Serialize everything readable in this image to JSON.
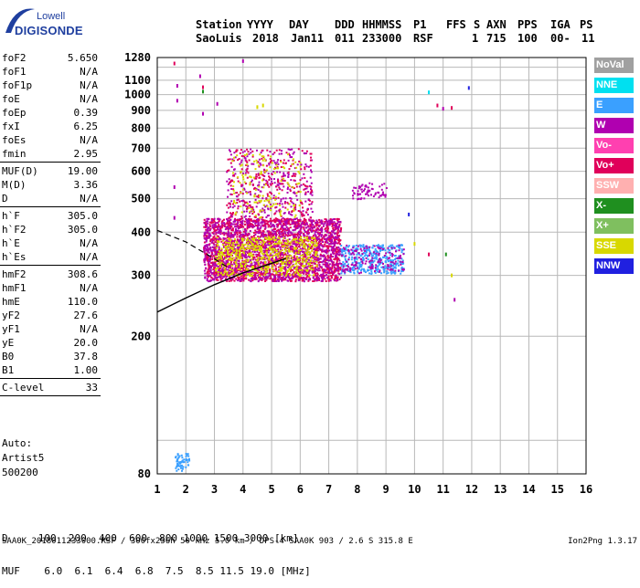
{
  "logo": {
    "top": "Lowell",
    "main": "DIGISONDE"
  },
  "header": {
    "line1": [
      "Station",
      "YYYY",
      "DAY",
      "DDD",
      "HHMMSS",
      "P1",
      "FFS",
      "S",
      "AXN",
      "PPS",
      "IGA",
      "PS"
    ],
    "line2": [
      "SaoLuis",
      "2018",
      "Jan11",
      "011",
      "233000",
      "RSF",
      "1",
      "715",
      "100",
      "00-",
      "11"
    ]
  },
  "params": [
    {
      "label": "foF2",
      "value": "5.650",
      "sep_after": false
    },
    {
      "label": "foF1",
      "value": "N/A",
      "sep_after": false
    },
    {
      "label": "foF1p",
      "value": "N/A",
      "sep_after": false
    },
    {
      "label": "foE",
      "value": "N/A",
      "sep_after": false
    },
    {
      "label": "foEp",
      "value": "0.39",
      "sep_after": false
    },
    {
      "label": "fxI",
      "value": "6.25",
      "sep_after": false
    },
    {
      "label": "foEs",
      "value": "N/A",
      "sep_after": false
    },
    {
      "label": "fmin",
      "value": "2.95",
      "sep_after": true
    },
    {
      "label": "MUF(D)",
      "value": "19.00",
      "sep_after": false
    },
    {
      "label": "M(D)",
      "value": "3.36",
      "sep_after": false
    },
    {
      "label": "D",
      "value": "N/A",
      "sep_after": true
    },
    {
      "label": "h`F",
      "value": "305.0",
      "sep_after": false
    },
    {
      "label": "h`F2",
      "value": "305.0",
      "sep_after": false
    },
    {
      "label": "h`E",
      "value": "N/A",
      "sep_after": false
    },
    {
      "label": "h`Es",
      "value": "N/A",
      "sep_after": true
    },
    {
      "label": "hmF2",
      "value": "308.6",
      "sep_after": false
    },
    {
      "label": "hmF1",
      "value": "N/A",
      "sep_after": false
    },
    {
      "label": "hmE",
      "value": "110.0",
      "sep_after": false
    },
    {
      "label": "yF2",
      "value": "27.6",
      "sep_after": false
    },
    {
      "label": "yF1",
      "value": "N/A",
      "sep_after": false
    },
    {
      "label": "yE",
      "value": "20.0",
      "sep_after": false
    },
    {
      "label": "B0",
      "value": "37.8",
      "sep_after": false
    },
    {
      "label": "B1",
      "value": "1.00",
      "sep_after": true
    },
    {
      "label": "C-level",
      "value": "33",
      "sep_after": true
    }
  ],
  "auto": {
    "line1": "Auto:",
    "line2": "Artist5",
    "line3": "500200"
  },
  "legend": [
    {
      "label": "NoVal",
      "color": "#a0a0a0"
    },
    {
      "label": "NNE",
      "color": "#00e0f0"
    },
    {
      "label": "E",
      "color": "#3aa0ff"
    },
    {
      "label": "W",
      "color": "#b000b0"
    },
    {
      "label": "Vo-",
      "color": "#ff40b0"
    },
    {
      "label": "Vo+",
      "color": "#e0005a"
    },
    {
      "label": "SSW",
      "color": "#ffb0b0"
    },
    {
      "label": "X-",
      "color": "#1f8f1f"
    },
    {
      "label": "X+",
      "color": "#7fbf5f"
    },
    {
      "label": "SSE",
      "color": "#d8d800"
    },
    {
      "label": "NNW",
      "color": "#2020e0"
    }
  ],
  "footer": {
    "line1": "D     100  200  400  600  800 1000 1500 3000 [km]",
    "line2": "MUF    6.0  6.1  6.4  6.8  7.5  8.5 11.5 19.0 [MHz]",
    "bottom": "SAA0K_2018011233000.RSF / 300fx256h 50 kHz 5.0 km / DPS-4 SAA0K 903 / 2.6 S 315.8 E",
    "version": "Ion2Png 1.3.17"
  },
  "chart_data": {
    "type": "scatter",
    "title": "",
    "xlabel": "",
    "ylabel": "",
    "xlim": [
      1,
      16
    ],
    "ylim": [
      80,
      1280
    ],
    "x_ticks": [
      1,
      2,
      3,
      4,
      5,
      6,
      7,
      8,
      9,
      10,
      11,
      12,
      13,
      14,
      15,
      16
    ],
    "y_ticks": [
      80,
      200,
      300,
      400,
      500,
      600,
      700,
      800,
      900,
      1000,
      1100,
      1280
    ],
    "y_scale": "log",
    "grid": true,
    "legend_position": "right",
    "profile_curve": {
      "name": "",
      "x": [
        1.0,
        2.0,
        3.0,
        4.0,
        5.0,
        5.5
      ],
      "y": [
        235,
        258,
        282,
        305,
        325,
        336
      ]
    },
    "dashed_curve": {
      "x": [
        1.0,
        2.0,
        3.0,
        3.5
      ],
      "y": [
        405,
        375,
        335,
        315
      ]
    },
    "clusters": [
      {
        "x_min": 2.6,
        "x_max": 7.4,
        "y_min": 290,
        "y_max": 440,
        "color": "#e0005a",
        "density": 0.55
      },
      {
        "x_min": 2.6,
        "x_max": 7.4,
        "y_min": 290,
        "y_max": 440,
        "color": "#b000b0",
        "density": 0.35
      },
      {
        "x_min": 3.0,
        "x_max": 6.6,
        "y_min": 300,
        "y_max": 390,
        "color": "#d8d800",
        "density": 0.35
      },
      {
        "x_min": 3.4,
        "x_max": 6.4,
        "y_min": 420,
        "y_max": 700,
        "color": "#b000b0",
        "density": 0.12
      },
      {
        "x_min": 3.4,
        "x_max": 6.4,
        "y_min": 420,
        "y_max": 700,
        "color": "#e0005a",
        "density": 0.1
      },
      {
        "x_min": 3.6,
        "x_max": 6.0,
        "y_min": 440,
        "y_max": 680,
        "color": "#d8d800",
        "density": 0.08
      },
      {
        "x_min": 7.4,
        "x_max": 9.6,
        "y_min": 305,
        "y_max": 370,
        "color": "#3aa0ff",
        "density": 0.5
      },
      {
        "x_min": 7.4,
        "x_max": 9.6,
        "y_min": 305,
        "y_max": 370,
        "color": "#b000b0",
        "density": 0.2
      },
      {
        "x_min": 7.8,
        "x_max": 9.0,
        "y_min": 500,
        "y_max": 560,
        "color": "#b000b0",
        "density": 0.3
      },
      {
        "x_min": 1.6,
        "x_max": 2.1,
        "y_min": 82,
        "y_max": 92,
        "color": "#3aa0ff",
        "density": 0.6
      }
    ],
    "points": [
      {
        "x": 1.6,
        "y": 1230,
        "color": "#e0005a"
      },
      {
        "x": 1.7,
        "y": 1060,
        "color": "#b000b0"
      },
      {
        "x": 1.7,
        "y": 960,
        "color": "#b000b0"
      },
      {
        "x": 1.6,
        "y": 540,
        "color": "#b000b0"
      },
      {
        "x": 1.6,
        "y": 440,
        "color": "#b000b0"
      },
      {
        "x": 2.5,
        "y": 1130,
        "color": "#b000b0"
      },
      {
        "x": 2.6,
        "y": 1050,
        "color": "#e0005a"
      },
      {
        "x": 2.6,
        "y": 1020,
        "color": "#1f8f1f"
      },
      {
        "x": 2.6,
        "y": 880,
        "color": "#b000b0"
      },
      {
        "x": 3.1,
        "y": 940,
        "color": "#b000b0"
      },
      {
        "x": 4.0,
        "y": 1250,
        "color": "#b000b0"
      },
      {
        "x": 4.5,
        "y": 920,
        "color": "#d8d800"
      },
      {
        "x": 4.7,
        "y": 930,
        "color": "#d8d800"
      },
      {
        "x": 10.5,
        "y": 1015,
        "color": "#00e0f0"
      },
      {
        "x": 10.8,
        "y": 930,
        "color": "#e0005a"
      },
      {
        "x": 11.0,
        "y": 910,
        "color": "#b000b0"
      },
      {
        "x": 11.3,
        "y": 915,
        "color": "#e0005a"
      },
      {
        "x": 11.9,
        "y": 1045,
        "color": "#2020e0"
      },
      {
        "x": 9.8,
        "y": 450,
        "color": "#2020e0"
      },
      {
        "x": 10.0,
        "y": 370,
        "color": "#d8d800"
      },
      {
        "x": 10.5,
        "y": 345,
        "color": "#e0005a"
      },
      {
        "x": 11.3,
        "y": 300,
        "color": "#d8d800"
      },
      {
        "x": 11.4,
        "y": 255,
        "color": "#b000b0"
      },
      {
        "x": 11.1,
        "y": 345,
        "color": "#1f8f1f"
      }
    ]
  }
}
